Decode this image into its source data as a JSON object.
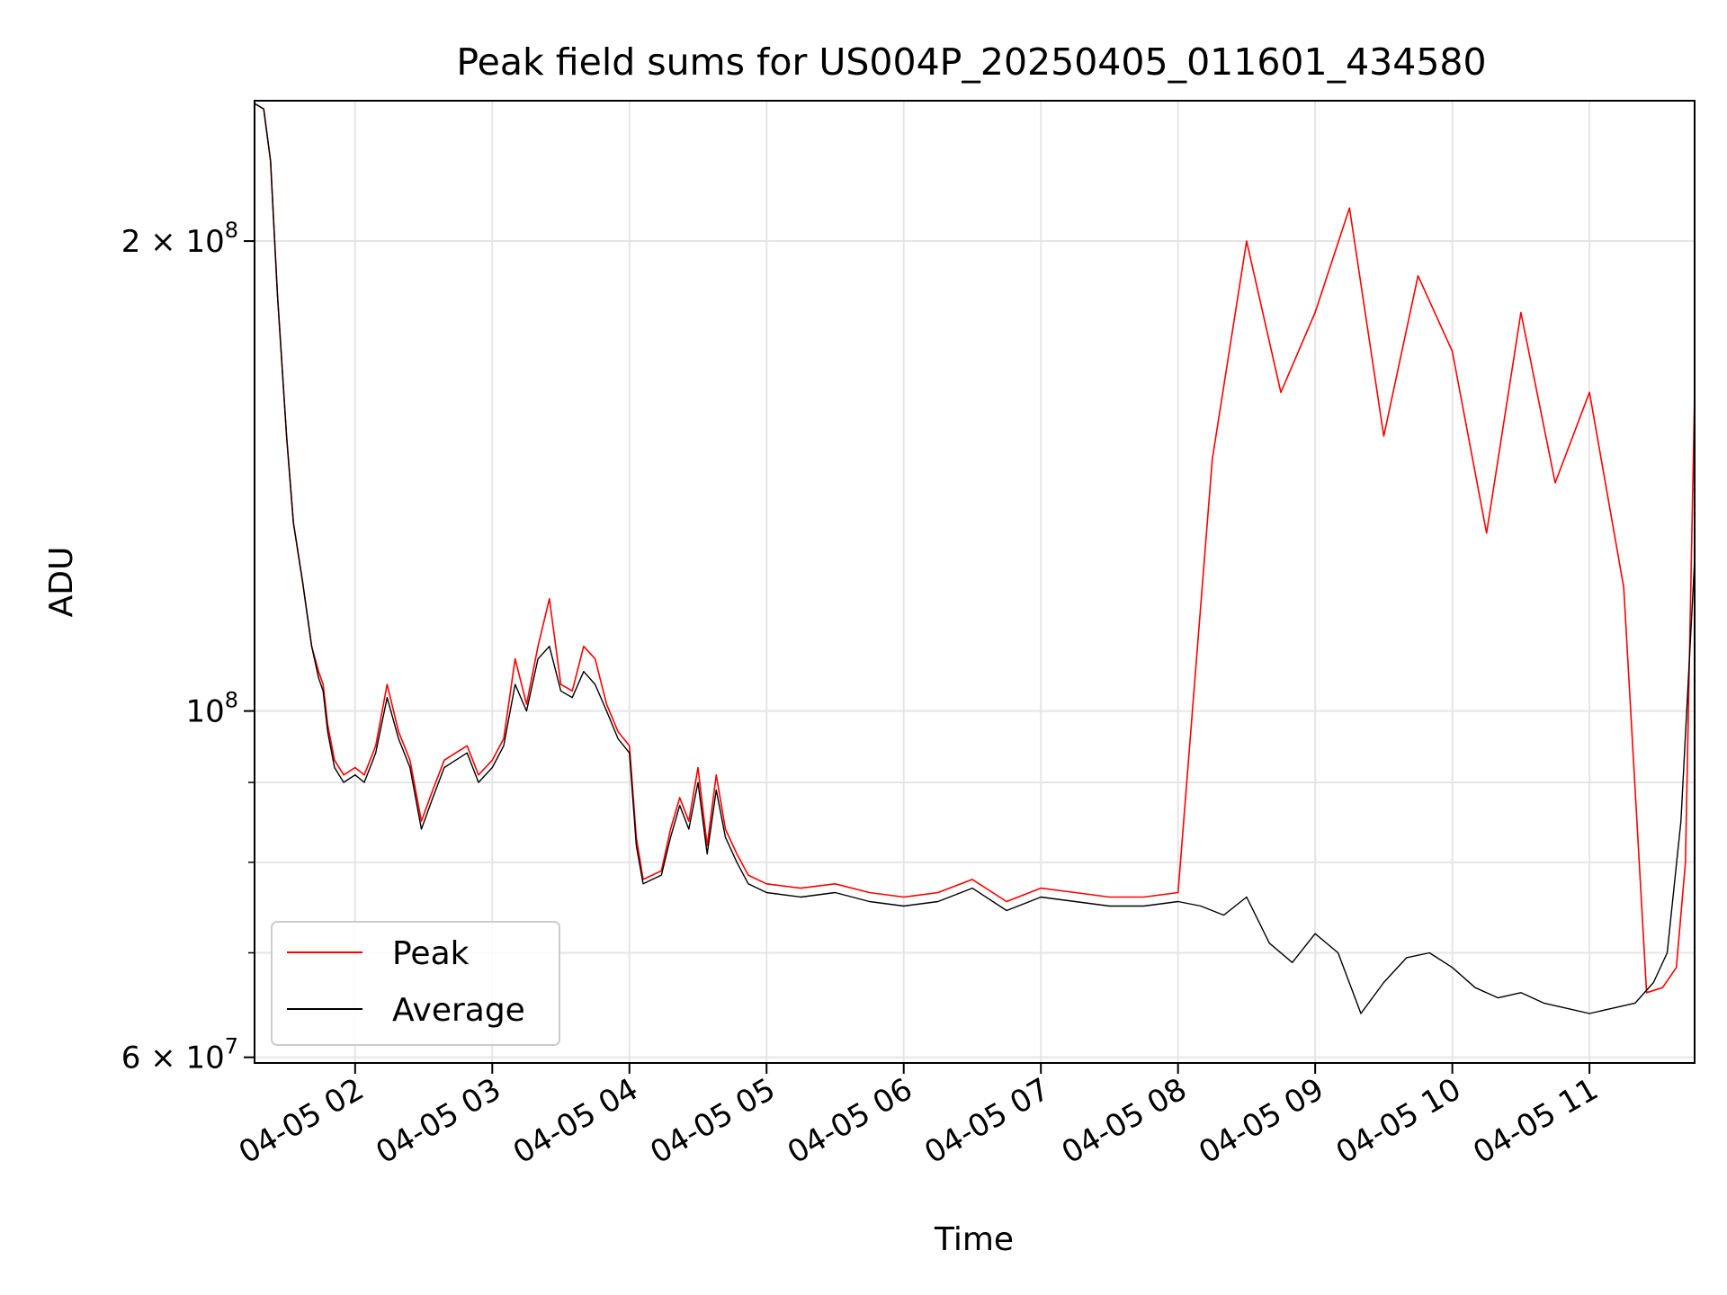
{
  "chart_data": {
    "type": "line",
    "title": "Peak field sums for US004P_20250405_011601_434580",
    "xlabel": "Time",
    "ylabel": "ADU",
    "y_scale": "log",
    "ylim": [
      59500000,
      246000000
    ],
    "xlim": [
      "2025-04-05 01:16",
      "2025-04-05 11:46"
    ],
    "grid": true,
    "legend_position": "lower-left",
    "x_ticks": [
      {
        "t": "2025-04-05 02:00",
        "label": "04-05 02"
      },
      {
        "t": "2025-04-05 03:00",
        "label": "04-05 03"
      },
      {
        "t": "2025-04-05 04:00",
        "label": "04-05 04"
      },
      {
        "t": "2025-04-05 05:00",
        "label": "04-05 05"
      },
      {
        "t": "2025-04-05 06:00",
        "label": "04-05 06"
      },
      {
        "t": "2025-04-05 07:00",
        "label": "04-05 07"
      },
      {
        "t": "2025-04-05 08:00",
        "label": "04-05 08"
      },
      {
        "t": "2025-04-05 09:00",
        "label": "04-05 09"
      },
      {
        "t": "2025-04-05 10:00",
        "label": "04-05 10"
      },
      {
        "t": "2025-04-05 11:00",
        "label": "04-05 11"
      }
    ],
    "y_major_ticks": [
      {
        "value": 60000000,
        "base": "6",
        "exp": "7",
        "label": "6 × 10^7"
      },
      {
        "value": 100000000,
        "base": "",
        "exp": "8",
        "label": "10^8"
      },
      {
        "value": 200000000,
        "base": "2",
        "exp": "8",
        "label": "2 × 10^8"
      }
    ],
    "y_minor_ticks": [
      70000000,
      80000000,
      90000000
    ],
    "series": [
      {
        "name": "Peak",
        "color": "#ff0000",
        "x": [
          "2025-04-05 01:16",
          "2025-04-05 01:20",
          "2025-04-05 01:23",
          "2025-04-05 01:26",
          "2025-04-05 01:30",
          "2025-04-05 01:33",
          "2025-04-05 01:37",
          "2025-04-05 01:41",
          "2025-04-05 01:44",
          "2025-04-05 01:46",
          "2025-04-05 01:48",
          "2025-04-05 01:51",
          "2025-04-05 01:55",
          "2025-04-05 02:00",
          "2025-04-05 02:04",
          "2025-04-05 02:09",
          "2025-04-05 02:14",
          "2025-04-05 02:19",
          "2025-04-05 02:24",
          "2025-04-05 02:29",
          "2025-04-05 02:34",
          "2025-04-05 02:39",
          "2025-04-05 02:44",
          "2025-04-05 02:49",
          "2025-04-05 02:54",
          "2025-04-05 03:00",
          "2025-04-05 03:05",
          "2025-04-05 03:10",
          "2025-04-05 03:15",
          "2025-04-05 03:20",
          "2025-04-05 03:25",
          "2025-04-05 03:30",
          "2025-04-05 03:35",
          "2025-04-05 03:40",
          "2025-04-05 03:45",
          "2025-04-05 03:50",
          "2025-04-05 03:55",
          "2025-04-05 04:00",
          "2025-04-05 04:03",
          "2025-04-05 04:06",
          "2025-04-05 04:10",
          "2025-04-05 04:14",
          "2025-04-05 04:18",
          "2025-04-05 04:22",
          "2025-04-05 04:26",
          "2025-04-05 04:30",
          "2025-04-05 04:34",
          "2025-04-05 04:38",
          "2025-04-05 04:42",
          "2025-04-05 04:47",
          "2025-04-05 04:52",
          "2025-04-05 05:00",
          "2025-04-05 05:15",
          "2025-04-05 05:30",
          "2025-04-05 05:45",
          "2025-04-05 06:00",
          "2025-04-05 06:15",
          "2025-04-05 06:30",
          "2025-04-05 06:45",
          "2025-04-05 07:00",
          "2025-04-05 07:15",
          "2025-04-05 07:30",
          "2025-04-05 07:45",
          "2025-04-05 08:00",
          "2025-04-05 08:15",
          "2025-04-05 08:30",
          "2025-04-05 08:45",
          "2025-04-05 09:00",
          "2025-04-05 09:15",
          "2025-04-05 09:30",
          "2025-04-05 09:45",
          "2025-04-05 10:00",
          "2025-04-05 10:15",
          "2025-04-05 10:30",
          "2025-04-05 10:45",
          "2025-04-05 11:00",
          "2025-04-05 11:15",
          "2025-04-05 11:25",
          "2025-04-05 11:32",
          "2025-04-05 11:38",
          "2025-04-05 11:42",
          "2025-04-05 11:46"
        ],
        "y": [
          245000000,
          243000000,
          225000000,
          185000000,
          150000000,
          132000000,
          121000000,
          110000000,
          106000000,
          104000000,
          98000000,
          93000000,
          91000000,
          92000000,
          91000000,
          95000000,
          104000000,
          97000000,
          93000000,
          85000000,
          89000000,
          93000000,
          94000000,
          95000000,
          91000000,
          93000000,
          96000000,
          108000000,
          101000000,
          110000000,
          118000000,
          104000000,
          103000000,
          110000000,
          108000000,
          101000000,
          97000000,
          95000000,
          83000000,
          78000000,
          78500000,
          79000000,
          84000000,
          88000000,
          85000000,
          92000000,
          82000000,
          91000000,
          84000000,
          81000000,
          78500000,
          77500000,
          77000000,
          77500000,
          76500000,
          76000000,
          76500000,
          78000000,
          75500000,
          77000000,
          76500000,
          76000000,
          76000000,
          76500000,
          145000000,
          200000000,
          160000000,
          180000000,
          210000000,
          150000000,
          190000000,
          170000000,
          130000000,
          180000000,
          140000000,
          160000000,
          120000000,
          66000000,
          66500000,
          68500000,
          80000000,
          160000000
        ]
      },
      {
        "name": "Average",
        "color": "#000000",
        "x": [
          "2025-04-05 01:16",
          "2025-04-05 01:20",
          "2025-04-05 01:23",
          "2025-04-05 01:26",
          "2025-04-05 01:30",
          "2025-04-05 01:33",
          "2025-04-05 01:37",
          "2025-04-05 01:41",
          "2025-04-05 01:44",
          "2025-04-05 01:46",
          "2025-04-05 01:48",
          "2025-04-05 01:51",
          "2025-04-05 01:55",
          "2025-04-05 02:00",
          "2025-04-05 02:04",
          "2025-04-05 02:09",
          "2025-04-05 02:14",
          "2025-04-05 02:19",
          "2025-04-05 02:24",
          "2025-04-05 02:29",
          "2025-04-05 02:34",
          "2025-04-05 02:39",
          "2025-04-05 02:44",
          "2025-04-05 02:49",
          "2025-04-05 02:54",
          "2025-04-05 03:00",
          "2025-04-05 03:05",
          "2025-04-05 03:10",
          "2025-04-05 03:15",
          "2025-04-05 03:20",
          "2025-04-05 03:25",
          "2025-04-05 03:30",
          "2025-04-05 03:35",
          "2025-04-05 03:40",
          "2025-04-05 03:45",
          "2025-04-05 03:50",
          "2025-04-05 03:55",
          "2025-04-05 04:00",
          "2025-04-05 04:03",
          "2025-04-05 04:06",
          "2025-04-05 04:10",
          "2025-04-05 04:14",
          "2025-04-05 04:18",
          "2025-04-05 04:22",
          "2025-04-05 04:26",
          "2025-04-05 04:30",
          "2025-04-05 04:34",
          "2025-04-05 04:38",
          "2025-04-05 04:42",
          "2025-04-05 04:47",
          "2025-04-05 04:52",
          "2025-04-05 05:00",
          "2025-04-05 05:15",
          "2025-04-05 05:30",
          "2025-04-05 05:45",
          "2025-04-05 06:00",
          "2025-04-05 06:15",
          "2025-04-05 06:30",
          "2025-04-05 06:45",
          "2025-04-05 07:00",
          "2025-04-05 07:15",
          "2025-04-05 07:30",
          "2025-04-05 07:45",
          "2025-04-05 08:00",
          "2025-04-05 08:10",
          "2025-04-05 08:20",
          "2025-04-05 08:30",
          "2025-04-05 08:40",
          "2025-04-05 08:50",
          "2025-04-05 09:00",
          "2025-04-05 09:10",
          "2025-04-05 09:20",
          "2025-04-05 09:30",
          "2025-04-05 09:40",
          "2025-04-05 09:50",
          "2025-04-05 10:00",
          "2025-04-05 10:10",
          "2025-04-05 10:20",
          "2025-04-05 10:30",
          "2025-04-05 10:40",
          "2025-04-05 10:50",
          "2025-04-05 11:00",
          "2025-04-05 11:10",
          "2025-04-05 11:20",
          "2025-04-05 11:28",
          "2025-04-05 11:34",
          "2025-04-05 11:40",
          "2025-04-05 11:46"
        ],
        "y": [
          245000000,
          243000000,
          225000000,
          185000000,
          150000000,
          132000000,
          121000000,
          110000000,
          105000000,
          103000000,
          97000000,
          92000000,
          90000000,
          91000000,
          90000000,
          94000000,
          102000000,
          96000000,
          92000000,
          84000000,
          88000000,
          92000000,
          93000000,
          94000000,
          90000000,
          92000000,
          95000000,
          104000000,
          100000000,
          108000000,
          110000000,
          103000000,
          102000000,
          106000000,
          104000000,
          100000000,
          96000000,
          94000000,
          82000000,
          77500000,
          78000000,
          78500000,
          83000000,
          87000000,
          84000000,
          90000000,
          81000000,
          89000000,
          83000000,
          80000000,
          77500000,
          76500000,
          76000000,
          76500000,
          75500000,
          75000000,
          75500000,
          77000000,
          74500000,
          76000000,
          75500000,
          75000000,
          75000000,
          75500000,
          75000000,
          74000000,
          76000000,
          71000000,
          69000000,
          72000000,
          70000000,
          64000000,
          67000000,
          69500000,
          70000000,
          68500000,
          66500000,
          65500000,
          66000000,
          65000000,
          64500000,
          64000000,
          64500000,
          65000000,
          67000000,
          70000000,
          85000000,
          125000000
        ]
      }
    ]
  }
}
